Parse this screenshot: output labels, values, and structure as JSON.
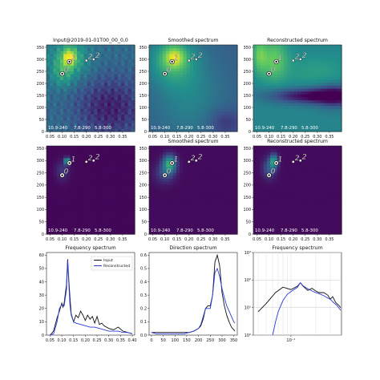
{
  "colors": {
    "input_line": "#111111",
    "recon_line": "#2b3bd6",
    "heat_low": "#3b1c59",
    "heat_mid": "#2a9a8a",
    "heat_high": "#e9e21c",
    "peak_white": "#ffffff",
    "peak_black": "#111111"
  },
  "chart_data": [
    {
      "type": "heatmap",
      "title": "Input@2019-01-01T00_00_0,0",
      "xticks": [
        "0.05",
        "0.10",
        "0.15",
        "0.20",
        "0.25",
        "0.30",
        "0.35"
      ],
      "yticks": [
        "0",
        "50",
        "100",
        "150",
        "200",
        "250",
        "300",
        "350"
      ],
      "xlim": [
        0.035,
        0.4
      ],
      "ylim": [
        0,
        360
      ],
      "markers": [
        {
          "label": "0",
          "x": 0.1,
          "y": 240
        },
        {
          "label": "1",
          "x": 0.13,
          "y": 290
        },
        {
          "label": "2",
          "x": 0.2,
          "y": 295
        },
        {
          "label": "2",
          "x": 0.23,
          "y": 300
        }
      ],
      "footer": [
        "10.9-240",
        "7.8-290",
        "5.8-300"
      ]
    },
    {
      "type": "heatmap",
      "title": "Smoothed spectrum",
      "xticks": [
        "0.05",
        "0.10",
        "0.15",
        "0.20",
        "0.25",
        "0.30",
        "0.35"
      ],
      "yticks": [
        "0",
        "50",
        "100",
        "150",
        "200",
        "250",
        "300",
        "350"
      ],
      "xlim": [
        0.035,
        0.4
      ],
      "ylim": [
        0,
        360
      ],
      "markers": [
        {
          "label": "0",
          "x": 0.1,
          "y": 240
        },
        {
          "label": "1",
          "x": 0.13,
          "y": 290
        },
        {
          "label": "2",
          "x": 0.2,
          "y": 295
        },
        {
          "label": "2",
          "x": 0.23,
          "y": 300
        }
      ],
      "footer": [
        "10.9-240",
        "7.8-290",
        "5.8-300"
      ]
    },
    {
      "type": "heatmap",
      "title": "Reconstructed spectrum",
      "xticks": [
        "0.05",
        "0.10",
        "0.15",
        "0.20",
        "0.25",
        "0.30",
        "0.35"
      ],
      "yticks": [
        "0",
        "50",
        "100",
        "150",
        "200",
        "250",
        "300",
        "350"
      ],
      "xlim": [
        0.035,
        0.4
      ],
      "ylim": [
        0,
        360
      ],
      "markers": [
        {
          "label": "0",
          "x": 0.1,
          "y": 240
        },
        {
          "label": "1",
          "x": 0.13,
          "y": 290
        },
        {
          "label": "2",
          "x": 0.2,
          "y": 295
        },
        {
          "label": "2",
          "x": 0.23,
          "y": 300
        }
      ],
      "footer": [
        "10.9-240",
        "7.8-290",
        "5.8-300"
      ]
    },
    {
      "type": "heatmap",
      "title": "",
      "xticks": [
        "0.05",
        "0.10",
        "0.15",
        "0.20",
        "0.25",
        "0.30",
        "0.35"
      ],
      "yticks": [
        "0",
        "50",
        "100",
        "150",
        "200",
        "250",
        "300",
        "350"
      ],
      "xlim": [
        0.035,
        0.4
      ],
      "ylim": [
        0,
        360
      ],
      "markers": [
        {
          "label": "0",
          "x": 0.1,
          "y": 240
        },
        {
          "label": "1",
          "x": 0.13,
          "y": 290
        },
        {
          "label": "2",
          "x": 0.2,
          "y": 295
        },
        {
          "label": "2",
          "x": 0.23,
          "y": 300
        }
      ],
      "footer": [
        "10.9-240",
        "7.8-290",
        "5.8-300"
      ]
    },
    {
      "type": "heatmap",
      "title": "Smoothed spectrum",
      "xticks": [
        "0.05",
        "0.10",
        "0.15",
        "0.20",
        "0.25",
        "0.30",
        "0.35"
      ],
      "yticks": [
        "0",
        "50",
        "100",
        "150",
        "200",
        "250",
        "300",
        "350"
      ],
      "xlim": [
        0.035,
        0.4
      ],
      "ylim": [
        0,
        360
      ],
      "markers": [
        {
          "label": "0",
          "x": 0.1,
          "y": 240
        },
        {
          "label": "1",
          "x": 0.13,
          "y": 290
        },
        {
          "label": "2",
          "x": 0.2,
          "y": 295
        },
        {
          "label": "2",
          "x": 0.23,
          "y": 300
        }
      ],
      "footer": [
        "10.9-240",
        "7.8-290",
        "5.8-300"
      ]
    },
    {
      "type": "heatmap",
      "title": "Reconstructed spectrum",
      "xticks": [
        "0.05",
        "0.10",
        "0.15",
        "0.20",
        "0.25",
        "0.30",
        "0.35"
      ],
      "yticks": [
        "0",
        "50",
        "100",
        "150",
        "200",
        "250",
        "300",
        "350"
      ],
      "xlim": [
        0.035,
        0.4
      ],
      "ylim": [
        0,
        360
      ],
      "markers": [
        {
          "label": "0",
          "x": 0.1,
          "y": 240
        },
        {
          "label": "1",
          "x": 0.13,
          "y": 290
        },
        {
          "label": "2",
          "x": 0.2,
          "y": 295
        },
        {
          "label": "2",
          "x": 0.23,
          "y": 300
        }
      ],
      "footer": [
        "10.9-240",
        "7.8-290",
        "5.8-300"
      ]
    },
    {
      "type": "line",
      "title": "Frequency spectrum",
      "xlim": [
        0.035,
        0.41
      ],
      "ylim": [
        0,
        62
      ],
      "xticks": [
        0.05,
        0.1,
        0.15,
        0.2,
        0.25,
        0.3,
        0.35,
        0.4
      ],
      "xticklabels": [
        "0.05",
        "0.10",
        "0.15",
        "0.20",
        "0.25",
        "0.30",
        "0.35",
        "0.40"
      ],
      "yticks": [
        0,
        10,
        20,
        30,
        40,
        50,
        60
      ],
      "legend": "top-right",
      "series": [
        {
          "name": "Input",
          "x": [
            0.05,
            0.065,
            0.08,
            0.09,
            0.1,
            0.105,
            0.11,
            0.12,
            0.125,
            0.13,
            0.135,
            0.14,
            0.15,
            0.16,
            0.17,
            0.18,
            0.19,
            0.2,
            0.21,
            0.22,
            0.23,
            0.24,
            0.25,
            0.26,
            0.27,
            0.28,
            0.3,
            0.32,
            0.34,
            0.36,
            0.38,
            0.4
          ],
          "y": [
            0,
            3,
            13,
            18,
            24,
            21,
            24,
            38,
            57,
            41,
            28,
            16,
            10,
            15,
            13,
            18,
            15,
            11,
            15,
            12,
            14,
            9,
            14,
            8,
            9,
            7,
            5,
            4,
            6,
            3,
            2,
            1
          ]
        },
        {
          "name": "Reconstructed",
          "x": [
            0.05,
            0.065,
            0.08,
            0.09,
            0.1,
            0.11,
            0.12,
            0.125,
            0.13,
            0.135,
            0.14,
            0.15,
            0.16,
            0.18,
            0.2,
            0.22,
            0.24,
            0.26,
            0.28,
            0.3,
            0.32,
            0.34,
            0.36,
            0.38,
            0.4
          ],
          "y": [
            0,
            1,
            10,
            20,
            23,
            22,
            34,
            56,
            38,
            22,
            15,
            10,
            9,
            8,
            7,
            6,
            6,
            5,
            4,
            3,
            3,
            3,
            2,
            2,
            1
          ]
        }
      ]
    },
    {
      "type": "line",
      "title": "Direction spectrum",
      "xlim": [
        -10,
        365
      ],
      "ylim": [
        0,
        0.62
      ],
      "xticks": [
        0,
        50,
        100,
        150,
        200,
        250,
        300,
        350
      ],
      "yticks": [
        0.0,
        0.1,
        0.2,
        0.3,
        0.4,
        0.5,
        0.6
      ],
      "yticklabels": [
        "0.0",
        "0.1",
        "0.2",
        "0.3",
        "0.4",
        "0.5",
        "0.6"
      ],
      "series": [
        {
          "name": "Input",
          "x": [
            0,
            20,
            40,
            60,
            80,
            100,
            120,
            140,
            160,
            180,
            200,
            210,
            220,
            230,
            240,
            250,
            260,
            270,
            280,
            290,
            300,
            310,
            320,
            330,
            340,
            350,
            355
          ],
          "y": [
            0.02,
            0.02,
            0.02,
            0.02,
            0.02,
            0.02,
            0.02,
            0.02,
            0.02,
            0.03,
            0.05,
            0.07,
            0.12,
            0.2,
            0.22,
            0.22,
            0.3,
            0.55,
            0.6,
            0.52,
            0.32,
            0.22,
            0.15,
            0.1,
            0.06,
            0.04,
            0.03
          ]
        },
        {
          "name": "Reconstructed",
          "x": [
            0,
            20,
            40,
            60,
            80,
            100,
            120,
            140,
            160,
            180,
            200,
            210,
            220,
            230,
            240,
            250,
            260,
            270,
            280,
            290,
            300,
            310,
            320,
            330,
            340,
            350,
            355
          ],
          "y": [
            0.02,
            0.01,
            0.01,
            0.01,
            0.01,
            0.01,
            0.01,
            0.01,
            0.02,
            0.03,
            0.05,
            0.08,
            0.14,
            0.2,
            0.2,
            0.2,
            0.3,
            0.47,
            0.5,
            0.44,
            0.35,
            0.28,
            0.22,
            0.18,
            0.14,
            0.1,
            0.09
          ]
        }
      ]
    },
    {
      "type": "line",
      "title": "Frequency spectrum",
      "xscale": "log",
      "yscale": "log",
      "xlim": [
        0.035,
        0.41
      ],
      "ylim": [
        1,
        1000
      ],
      "yticks": [
        1,
        10,
        100,
        1000
      ],
      "yticklabels": [
        "10⁰",
        "10¹",
        "10²",
        "10³"
      ],
      "xticks": [
        0.1
      ],
      "xticklabels": [
        "10⁻¹"
      ],
      "grid": true,
      "series": [
        {
          "name": "Input",
          "x": [
            0.04,
            0.05,
            0.065,
            0.08,
            0.1,
            0.12,
            0.13,
            0.14,
            0.16,
            0.18,
            0.2,
            0.22,
            0.25,
            0.28,
            0.3,
            0.32,
            0.35,
            0.38,
            0.4
          ],
          "y": [
            7,
            14,
            35,
            55,
            45,
            60,
            80,
            60,
            42,
            50,
            40,
            35,
            35,
            28,
            20,
            25,
            15,
            12,
            10
          ]
        },
        {
          "name": "Reconstructed",
          "x": [
            0.06,
            0.065,
            0.07,
            0.08,
            0.09,
            0.1,
            0.12,
            0.13,
            0.14,
            0.16,
            0.18,
            0.2,
            0.22,
            0.25,
            0.28,
            0.3,
            0.33,
            0.36,
            0.4
          ],
          "y": [
            1,
            3,
            7,
            18,
            30,
            38,
            55,
            80,
            62,
            48,
            40,
            35,
            32,
            27,
            22,
            20,
            15,
            12,
            8
          ]
        }
      ]
    }
  ]
}
